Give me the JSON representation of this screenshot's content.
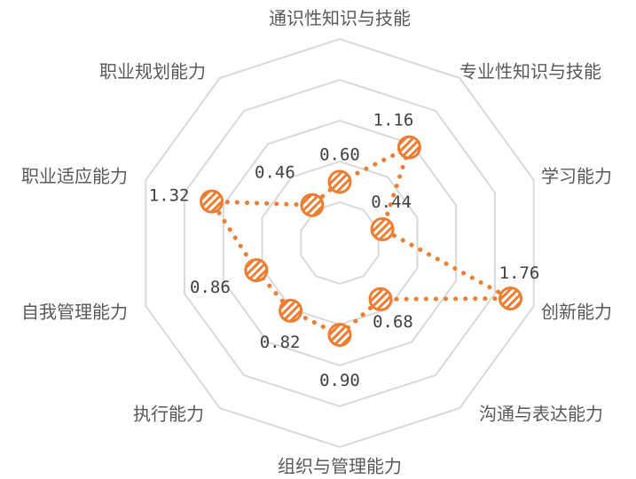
{
  "chart_data": {
    "type": "radar",
    "title": "",
    "categories": [
      "通识性知识与技能",
      "专业性知识与技能",
      "学习能力",
      "创新能力",
      "沟通与表达能力",
      "组织与管理能力",
      "执行能力",
      "自我管理能力",
      "职业适应能力",
      "职业规划能力"
    ],
    "series": [
      {
        "values": [
          0.6,
          1.16,
          0.44,
          1.76,
          0.68,
          0.9,
          0.82,
          0.86,
          1.32,
          0.46
        ],
        "labels": [
          "0.60",
          "1.16",
          "0.44",
          "1.76",
          "0.68",
          "0.90",
          "0.82",
          "0.86",
          "1.32",
          "0.46"
        ],
        "color": "#ed7d31",
        "line_style": "dotted",
        "marker": "hatched-circle"
      }
    ],
    "grid_rings": 5,
    "grid": true,
    "legend": "none"
  }
}
